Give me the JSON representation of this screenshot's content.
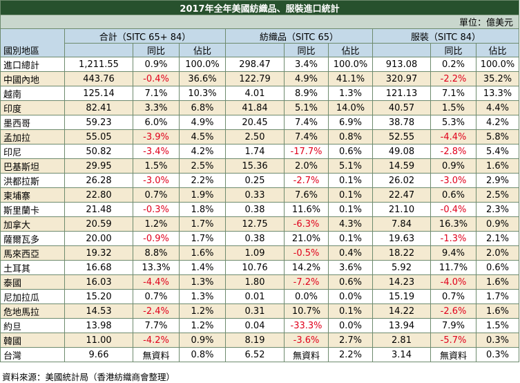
{
  "title": "2017年全年美國紡織品、服裝進口統計",
  "unit": "單位：億美元",
  "headers": {
    "region": "國別地區",
    "group1": "合計（SITC 65+ 84）",
    "group2": "紡織品（SITC 65）",
    "group3": "服裝（SITC 84）",
    "yoy": "同比",
    "share": "佔比"
  },
  "rows": [
    {
      "region": "進口總計",
      "t_val": "1,211.55",
      "t_yoy": "0.9%",
      "t_share": "100.0%",
      "x_val": "298.47",
      "x_yoy": "3.4%",
      "x_share": "100.0%",
      "a_val": "913.08",
      "a_yoy": "0.2%",
      "a_share": "100.0%"
    },
    {
      "region": "中國內地",
      "t_val": "443.76",
      "t_yoy": "-0.4%",
      "t_share": "36.6%",
      "x_val": "122.79",
      "x_yoy": "4.9%",
      "x_share": "41.1%",
      "a_val": "320.97",
      "a_yoy": "-2.2%",
      "a_share": "35.2%"
    },
    {
      "region": "越南",
      "t_val": "125.14",
      "t_yoy": "7.1%",
      "t_share": "10.3%",
      "x_val": "4.01",
      "x_yoy": "8.9%",
      "x_share": "1.3%",
      "a_val": "121.13",
      "a_yoy": "7.1%",
      "a_share": "13.3%"
    },
    {
      "region": "印度",
      "t_val": "82.41",
      "t_yoy": "3.3%",
      "t_share": "6.8%",
      "x_val": "41.84",
      "x_yoy": "5.1%",
      "x_share": "14.0%",
      "a_val": "40.57",
      "a_yoy": "1.5%",
      "a_share": "4.4%"
    },
    {
      "region": "墨西哥",
      "t_val": "59.23",
      "t_yoy": "6.0%",
      "t_share": "4.9%",
      "x_val": "20.45",
      "x_yoy": "7.4%",
      "x_share": "6.9%",
      "a_val": "38.78",
      "a_yoy": "5.3%",
      "a_share": "4.2%"
    },
    {
      "region": "孟加拉",
      "t_val": "55.05",
      "t_yoy": "-3.9%",
      "t_share": "4.5%",
      "x_val": "2.50",
      "x_yoy": "7.4%",
      "x_share": "0.8%",
      "a_val": "52.55",
      "a_yoy": "-4.4%",
      "a_share": "5.8%"
    },
    {
      "region": "印尼",
      "t_val": "50.82",
      "t_yoy": "-3.4%",
      "t_share": "4.2%",
      "x_val": "1.74",
      "x_yoy": "-17.7%",
      "x_share": "0.6%",
      "a_val": "49.08",
      "a_yoy": "-2.8%",
      "a_share": "5.4%"
    },
    {
      "region": "巴基斯坦",
      "t_val": "29.95",
      "t_yoy": "1.5%",
      "t_share": "2.5%",
      "x_val": "15.36",
      "x_yoy": "2.0%",
      "x_share": "5.1%",
      "a_val": "14.59",
      "a_yoy": "0.9%",
      "a_share": "1.6%"
    },
    {
      "region": "洪都拉斯",
      "t_val": "26.28",
      "t_yoy": "-3.0%",
      "t_share": "2.2%",
      "x_val": "0.25",
      "x_yoy": "-2.7%",
      "x_share": "0.1%",
      "a_val": "26.02",
      "a_yoy": "-3.0%",
      "a_share": "2.9%"
    },
    {
      "region": "柬埔寨",
      "t_val": "22.80",
      "t_yoy": "0.7%",
      "t_share": "1.9%",
      "x_val": "0.33",
      "x_yoy": "7.6%",
      "x_share": "0.1%",
      "a_val": "22.47",
      "a_yoy": "0.6%",
      "a_share": "2.5%"
    },
    {
      "region": "斯里蘭卡",
      "t_val": "21.48",
      "t_yoy": "-0.3%",
      "t_share": "1.8%",
      "x_val": "0.38",
      "x_yoy": "11.6%",
      "x_share": "0.1%",
      "a_val": "21.10",
      "a_yoy": "-0.4%",
      "a_share": "2.3%"
    },
    {
      "region": "加拿大",
      "t_val": "20.59",
      "t_yoy": "1.2%",
      "t_share": "1.7%",
      "x_val": "12.75",
      "x_yoy": "-6.3%",
      "x_share": "4.3%",
      "a_val": "7.84",
      "a_yoy": "16.3%",
      "a_share": "0.9%"
    },
    {
      "region": "薩爾瓦多",
      "t_val": "20.00",
      "t_yoy": "-0.9%",
      "t_share": "1.7%",
      "x_val": "0.38",
      "x_yoy": "21.0%",
      "x_share": "0.1%",
      "a_val": "19.63",
      "a_yoy": "-1.3%",
      "a_share": "2.1%"
    },
    {
      "region": "馬來西亞",
      "t_val": "19.32",
      "t_yoy": "8.8%",
      "t_share": "1.6%",
      "x_val": "1.09",
      "x_yoy": "-0.5%",
      "x_share": "0.4%",
      "a_val": "18.22",
      "a_yoy": "9.4%",
      "a_share": "2.0%"
    },
    {
      "region": "土耳其",
      "t_val": "16.68",
      "t_yoy": "13.3%",
      "t_share": "1.4%",
      "x_val": "10.76",
      "x_yoy": "14.2%",
      "x_share": "3.6%",
      "a_val": "5.92",
      "a_yoy": "11.7%",
      "a_share": "0.6%"
    },
    {
      "region": "泰國",
      "t_val": "16.03",
      "t_yoy": "-4.4%",
      "t_share": "1.3%",
      "x_val": "1.80",
      "x_yoy": "-7.2%",
      "x_share": "0.6%",
      "a_val": "14.23",
      "a_yoy": "-4.0%",
      "a_share": "1.6%"
    },
    {
      "region": "尼加拉瓜",
      "t_val": "15.20",
      "t_yoy": "0.7%",
      "t_share": "1.3%",
      "x_val": "0.01",
      "x_yoy": "0.0%",
      "x_share": "0.0%",
      "a_val": "15.19",
      "a_yoy": "0.7%",
      "a_share": "1.7%"
    },
    {
      "region": "危地馬拉",
      "t_val": "14.53",
      "t_yoy": "-2.4%",
      "t_share": "1.2%",
      "x_val": "0.31",
      "x_yoy": "10.7%",
      "x_share": "0.1%",
      "a_val": "14.22",
      "a_yoy": "-2.6%",
      "a_share": "1.6%"
    },
    {
      "region": "約旦",
      "t_val": "13.98",
      "t_yoy": "7.7%",
      "t_share": "1.2%",
      "x_val": "0.04",
      "x_yoy": "-33.3%",
      "x_share": "0.0%",
      "a_val": "13.94",
      "a_yoy": "7.9%",
      "a_share": "1.5%"
    },
    {
      "region": "韓國",
      "t_val": "11.00",
      "t_yoy": "-4.2%",
      "t_share": "0.9%",
      "x_val": "8.19",
      "x_yoy": "-3.6%",
      "x_share": "2.7%",
      "a_val": "2.81",
      "a_yoy": "-5.7%",
      "a_share": "0.3%"
    },
    {
      "region": "台灣",
      "t_val": "9.66",
      "t_yoy": "無資料",
      "t_share": "0.8%",
      "x_val": "6.52",
      "x_yoy": "無資料",
      "x_share": "2.2%",
      "a_val": "3.14",
      "a_yoy": "無資料",
      "a_share": "0.3%"
    }
  ],
  "source": "資料來源：美國統計局（香港紡織商會整理）",
  "colors": {
    "title_bg": "#27512d",
    "unit_bg": "#c9d7cd",
    "header_bg": "#c4d9e8",
    "alt_row_bg": "#f4ead1",
    "negative": "#e0001b"
  }
}
